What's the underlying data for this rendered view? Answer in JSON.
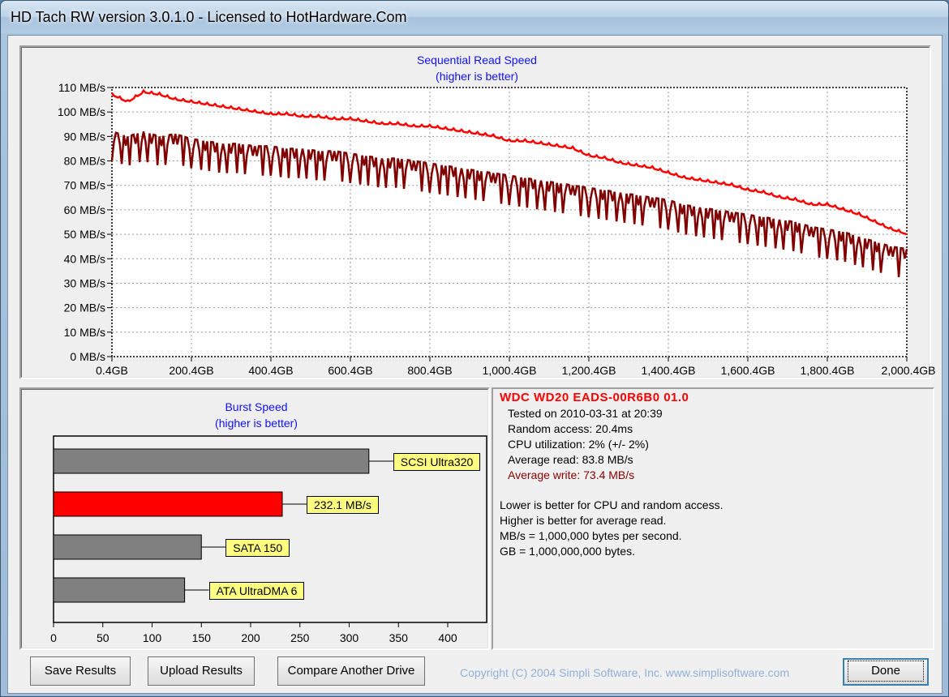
{
  "window": {
    "title": "HD Tach RW version 3.0.1.0 - Licensed to HotHardware.Com"
  },
  "sequential": {
    "title": "Sequential Read Speed",
    "subtitle": "(higher is better)",
    "y_ticks": [
      "110 MB/s",
      "100 MB/s",
      "90 MB/s",
      "80 MB/s",
      "70 MB/s",
      "60 MB/s",
      "50 MB/s",
      "40 MB/s",
      "30 MB/s",
      "20 MB/s",
      "10 MB/s",
      "0 MB/s"
    ],
    "x_ticks": [
      "0.4GB",
      "200.4GB",
      "400.4GB",
      "600.4GB",
      "800.4GB",
      "1,000.4GB",
      "1,200.4GB",
      "1,400.4GB",
      "1,600.4GB",
      "1,800.4GB",
      "2,000.4GB"
    ]
  },
  "burst": {
    "title": "Burst Speed",
    "subtitle": "(higher is better)",
    "bars": [
      {
        "label": "SCSI Ultra320",
        "value": 320,
        "color": "#808080"
      },
      {
        "label": "232.1 MB/s",
        "value": 232.1,
        "color": "#ff0000"
      },
      {
        "label": "SATA 150",
        "value": 150,
        "color": "#808080"
      },
      {
        "label": "ATA UltraDMA 6",
        "value": 133,
        "color": "#808080"
      }
    ],
    "x_ticks": [
      "0",
      "50",
      "100",
      "150",
      "200",
      "250",
      "300",
      "350",
      "400"
    ]
  },
  "info": {
    "drive": "WDC WD20 EADS-00R6B0 01.0",
    "tested": "Tested on 2010-03-31 at 20:39",
    "random": "Random access: 20.4ms",
    "cpu": "CPU utilization: 2% (+/- 2%)",
    "avg_read": "Average read: 83.8 MB/s",
    "avg_write": "Average write: 73.4 MB/s",
    "notes": [
      "Lower is better for CPU and random access.",
      "Higher is better for average read.",
      "MB/s = 1,000,000 bytes per second.",
      "GB = 1,000,000,000 bytes."
    ]
  },
  "buttons": {
    "save": "Save Results",
    "upload": "Upload Results",
    "compare": "Compare Another Drive",
    "done": "Done"
  },
  "copyright": "Copyright (C) 2004 Simpli Software, Inc. www.simplisoftware.com",
  "chart_data": {
    "type": "line",
    "title": "Sequential Read Speed",
    "subtitle": "(higher is better)",
    "ylim": [
      0,
      110
    ],
    "xlim": [
      0.4,
      2000.4
    ],
    "series": [
      {
        "color": "#ff0000",
        "x": [
          0.4,
          40,
          80,
          120,
          160,
          200,
          240,
          280,
          320,
          360,
          400,
          440,
          480,
          520,
          560,
          600,
          640,
          680,
          720,
          760,
          800,
          840,
          880,
          920,
          960,
          1000,
          1040,
          1080,
          1120,
          1160,
          1200,
          1240,
          1280,
          1320,
          1360,
          1400,
          1440,
          1480,
          1520,
          1560,
          1600,
          1640,
          1680,
          1720,
          1760,
          1800,
          1840,
          1880,
          1920,
          1960,
          2000.4
        ],
        "y": [
          107,
          104,
          108,
          107,
          105,
          104,
          103,
          102,
          101,
          100,
          99,
          99,
          98,
          98,
          97,
          97,
          96,
          95,
          95,
          94,
          94,
          93,
          92,
          91,
          90,
          88,
          88,
          87,
          86,
          85,
          82,
          81,
          79,
          78,
          77,
          75,
          73,
          72,
          71,
          70,
          68,
          67,
          65,
          64,
          62,
          62,
          60,
          58,
          55,
          52,
          50
        ]
      },
      {
        "color": "#800000",
        "x": [
          0.4,
          40,
          80,
          120,
          160,
          200,
          240,
          280,
          320,
          360,
          400,
          440,
          480,
          520,
          560,
          600,
          640,
          680,
          720,
          760,
          800,
          840,
          880,
          920,
          960,
          1000,
          1040,
          1080,
          1120,
          1160,
          1200,
          1240,
          1280,
          1320,
          1360,
          1400,
          1440,
          1480,
          1520,
          1560,
          1600,
          1640,
          1680,
          1720,
          1760,
          1800,
          1840,
          1880,
          1920,
          1960,
          2000.4
        ],
        "y": [
          92,
          90,
          92,
          90,
          91,
          89,
          88,
          87,
          87,
          86,
          86,
          85,
          85,
          84,
          84,
          83,
          82,
          81,
          81,
          80,
          79,
          78,
          77,
          76,
          75,
          74,
          73,
          72,
          71,
          70,
          69,
          68,
          67,
          66,
          65,
          64,
          62,
          61,
          60,
          59,
          58,
          57,
          56,
          55,
          53,
          52,
          51,
          49,
          47,
          45,
          44
        ]
      }
    ]
  }
}
